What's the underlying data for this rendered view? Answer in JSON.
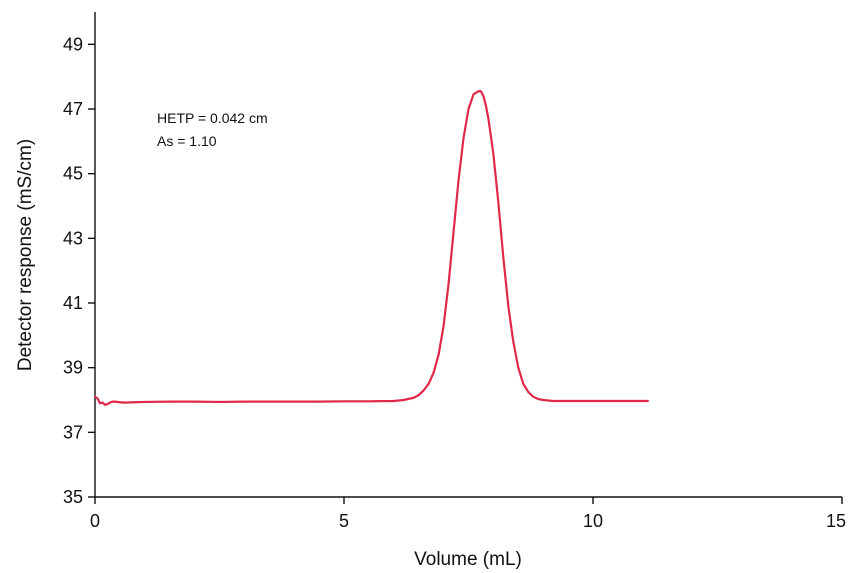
{
  "chart_data": {
    "type": "line",
    "xlabel": "Volume (mL)",
    "ylabel": "Detector response (mS/cm)",
    "xlim": [
      0,
      15
    ],
    "ylim": [
      35,
      50
    ],
    "xticks": [
      0,
      5,
      10,
      15
    ],
    "yticks": [
      35,
      37,
      39,
      41,
      43,
      45,
      47,
      49
    ],
    "grid": false,
    "annotations": [
      "HETP = 0.042 cm",
      "As = 1.10"
    ],
    "series": [
      {
        "color": "#e0294a",
        "x": [
          0.0,
          0.05,
          0.1,
          0.15,
          0.2,
          0.25,
          0.3,
          0.35,
          0.4,
          0.5,
          0.6,
          0.8,
          1.0,
          1.5,
          2.0,
          2.5,
          3.0,
          3.5,
          4.0,
          4.5,
          5.0,
          5.5,
          6.0,
          6.2,
          6.4,
          6.5,
          6.6,
          6.7,
          6.8,
          6.9,
          7.0,
          7.1,
          7.2,
          7.3,
          7.4,
          7.5,
          7.6,
          7.7,
          7.75,
          7.8,
          7.85,
          7.9,
          8.0,
          8.1,
          8.2,
          8.3,
          8.4,
          8.5,
          8.6,
          8.7,
          8.8,
          8.9,
          9.0,
          9.2,
          9.4,
          9.6,
          9.8,
          10.0,
          10.5,
          11.0,
          11.1
        ],
        "y": [
          38.1,
          38.05,
          37.9,
          37.92,
          37.85,
          37.87,
          37.92,
          37.95,
          37.95,
          37.93,
          37.92,
          37.93,
          37.94,
          37.95,
          37.95,
          37.94,
          37.95,
          37.95,
          37.95,
          37.95,
          37.96,
          37.96,
          37.97,
          38.0,
          38.07,
          38.15,
          38.3,
          38.5,
          38.85,
          39.4,
          40.3,
          41.6,
          43.2,
          44.8,
          46.1,
          47.0,
          47.45,
          47.55,
          47.55,
          47.4,
          47.1,
          46.7,
          45.6,
          44.1,
          42.4,
          40.9,
          39.8,
          39.0,
          38.5,
          38.25,
          38.1,
          38.03,
          38.0,
          37.97,
          37.97,
          37.97,
          37.97,
          37.97,
          37.97,
          37.97,
          37.97
        ]
      }
    ]
  }
}
